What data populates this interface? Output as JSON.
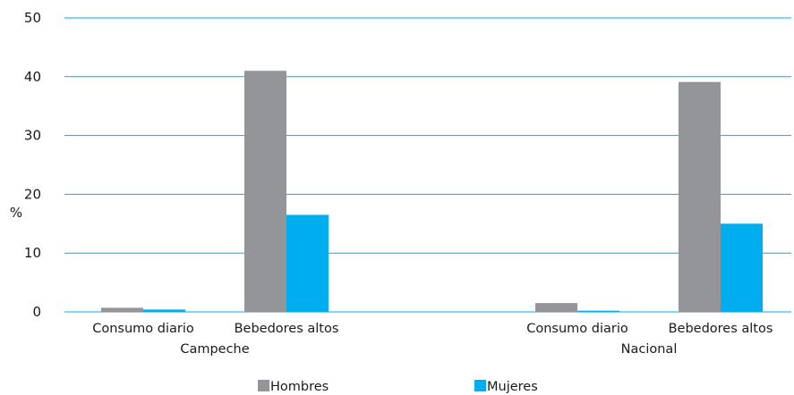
{
  "chart_data": {
    "type": "bar",
    "ylabel": "%",
    "ylim": [
      0,
      50
    ],
    "yticks": [
      0,
      10,
      20,
      30,
      40,
      50
    ],
    "grid": true,
    "legend_position": "bottom",
    "groups": [
      {
        "label": "Campeche",
        "categories": [
          "Consumo diario",
          "Bebedores altos"
        ]
      },
      {
        "label": "Nacional",
        "categories": [
          "Consumo diario",
          "Bebedores altos"
        ]
      }
    ],
    "series": [
      {
        "name": "Hombres",
        "color": "#939598",
        "values": [
          0.7,
          41.0,
          1.5,
          39.1
        ]
      },
      {
        "name": "Mujeres",
        "color": "#00aeef",
        "values": [
          0.4,
          16.5,
          0.2,
          15.0
        ]
      }
    ],
    "gridline_color": "#00aeef"
  }
}
